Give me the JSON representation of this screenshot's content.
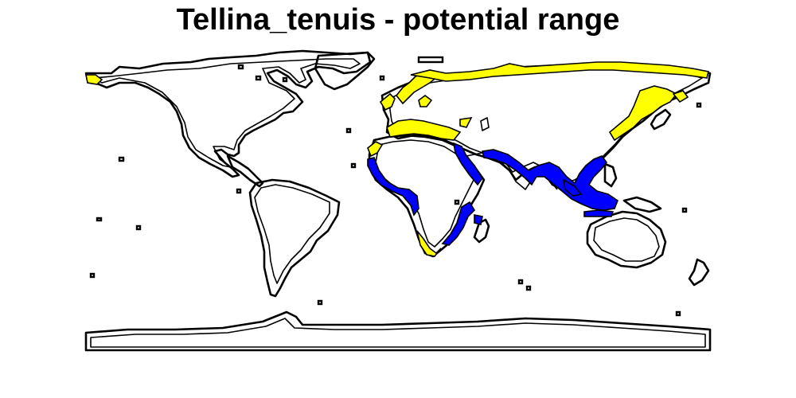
{
  "title": "Tellina_tenuis - potential range",
  "map": {
    "colors": {
      "outline": "#000000",
      "land": "#ffffff",
      "range_high": "#0000ff",
      "range_low": "#ffff00"
    }
  }
}
